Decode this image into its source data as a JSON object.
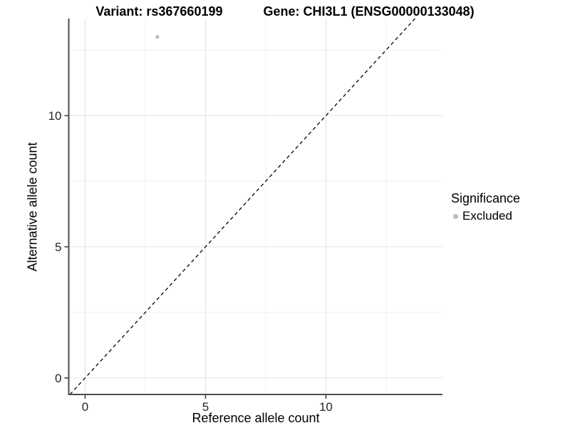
{
  "header": {
    "variant_title": "Variant: rs367660199",
    "gene_title": "Gene: CHI3L1 (ENSG00000133048)"
  },
  "legend": {
    "title": "Significance",
    "items": [
      {
        "label": "Excluded",
        "color": "#bdbdbd"
      }
    ]
  },
  "chart_data": {
    "type": "scatter",
    "title": "Variant: rs367660199   Gene: CHI3L1 (ENSG00000133048)",
    "xlabel": "Reference allele count",
    "ylabel": "Alternative allele count",
    "xlim": [
      -0.68,
      14.84
    ],
    "ylim": [
      -0.63,
      13.7
    ],
    "x_ticks": [
      0,
      5,
      10
    ],
    "y_ticks": [
      0,
      5,
      10
    ],
    "x_minor_gridlines": [
      2.5,
      7.5,
      12.5
    ],
    "y_minor_gridlines": [
      2.5,
      7.5,
      12.5
    ],
    "grid": true,
    "legend_position": "right",
    "series": [
      {
        "name": "Excluded",
        "color": "#bdbdbd",
        "points": [
          {
            "x": 3,
            "y": 13
          }
        ]
      }
    ],
    "reference_line": {
      "kind": "identity",
      "slope": 1,
      "intercept": 0,
      "style": "dashed",
      "color": "#000000"
    }
  },
  "style_colors": {
    "grid_major": "#e5e5e5",
    "grid_minor": "#f1f1f1",
    "axis_line": "#4d4d4d",
    "tick_mark": "#333333",
    "point_gray": "#bdbdbd"
  }
}
